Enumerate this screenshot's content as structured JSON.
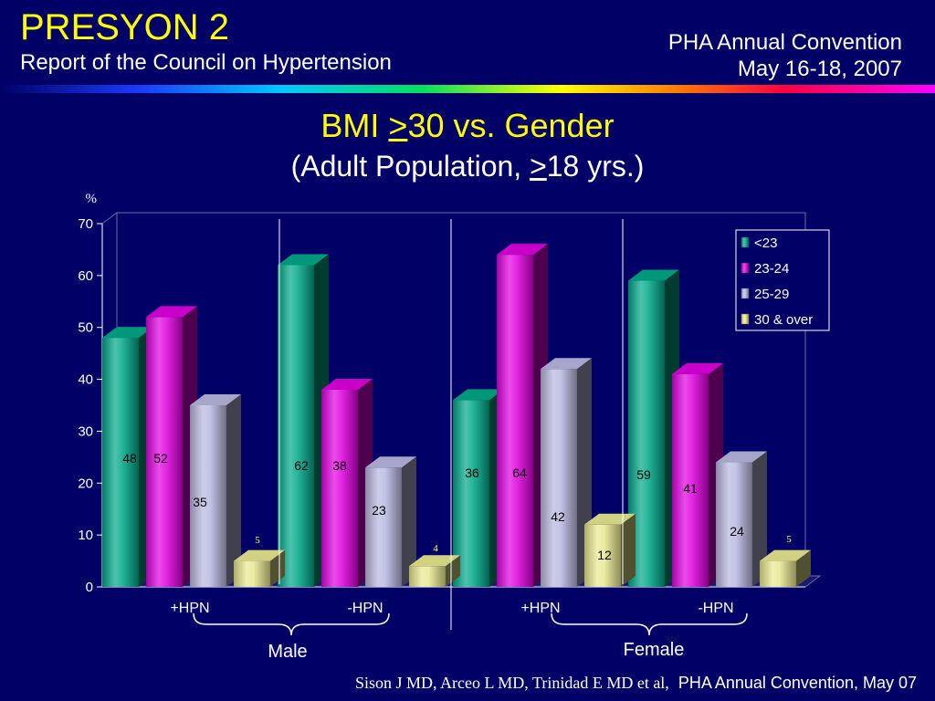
{
  "header": {
    "title": "PRESYON 2",
    "subtitle": "Report of the Council on Hypertension",
    "event_line1": "PHA Annual Convention",
    "event_line2": "May 16-18, 2007"
  },
  "footer": {
    "authors": "Sison J MD, Arceo L MD, Trinidad E MD et al,",
    "event": "PHA Annual Convention, May 07"
  },
  "colors": {
    "background": "#000066",
    "title": "#ffff00",
    "lt23": "#00a888",
    "b23_24": "#e000e0",
    "b25_29": "#b8b8e0",
    "over30": "#e8e890"
  },
  "chart_data": {
    "type": "bar",
    "title_pre": "BMI ",
    "title_sym": ">",
    "title_post": "30 vs. Gender",
    "subtitle_pre": "(Adult Population, ",
    "subtitle_sym": ">",
    "subtitle_post": "18 yrs.)",
    "ylabel": "%",
    "ylim": [
      0,
      70
    ],
    "yticks": [
      0,
      10,
      20,
      30,
      40,
      50,
      60,
      70
    ],
    "categories": [
      "+HPN",
      "-HPN",
      "+HPN",
      "-HPN"
    ],
    "groups": [
      "Male",
      "Female"
    ],
    "series": [
      {
        "name": "<23",
        "values": [
          48,
          62,
          36,
          59
        ]
      },
      {
        "name": "23-24",
        "values": [
          52,
          38,
          64,
          41
        ]
      },
      {
        "name": "25-29",
        "values": [
          35,
          23,
          42,
          24
        ]
      },
      {
        "name": "30 & over",
        "values": [
          5,
          4,
          12,
          5
        ]
      }
    ],
    "legend_position": "top-right",
    "grid": false
  }
}
